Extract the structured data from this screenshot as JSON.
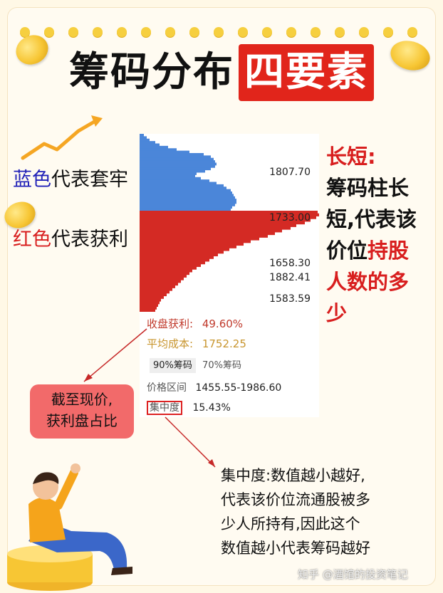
{
  "title": {
    "black": "筹码分布",
    "red": "四要素"
  },
  "left_labels": {
    "blue_key": "蓝色",
    "blue_rest": "代表套牢",
    "red_key": "红色",
    "red_rest": "代表获利"
  },
  "chart_data": {
    "type": "horizontal_histogram",
    "price_labels": [
      "1882.41",
      "1807.70",
      "1733.00",
      "1658.30",
      "1583.59"
    ],
    "current_price": 1733.0,
    "above_color": "#4b86d9",
    "below_color": "#d42a24"
  },
  "stats": {
    "profit_label": "收盘获利:",
    "profit_value": "49.60%",
    "avg_cost_label": "平均成本:",
    "avg_cost_value": "1752.25",
    "tab_90": "90%筹码",
    "tab_70": "70%筹码",
    "range_label": "价格区间",
    "range_value": "1455.55-1986.60",
    "concentration_label": "集中度",
    "concentration_value": "15.43%"
  },
  "callout": {
    "line1": "截至现价,",
    "line2": "获利盘占比"
  },
  "right_text": {
    "line1": "长短:",
    "line2": "筹码柱长",
    "line3": "短,代表该",
    "line4_a": "价位",
    "line4_b": "持股",
    "line5": "人数的多",
    "line6": "少"
  },
  "bottom_text": {
    "line1": "集中度:数值越小越好,",
    "line2": "代表该价位流通股被多",
    "line3": "少人所持有,因此这个",
    "line4": "数值越小代表筹码越好"
  },
  "watermark": "知乎 @酒馆的投资笔记",
  "colors": {
    "accent_red": "#e1251b",
    "dot_yellow": "#f6cf3f",
    "callout_bg": "#f26a6a"
  }
}
